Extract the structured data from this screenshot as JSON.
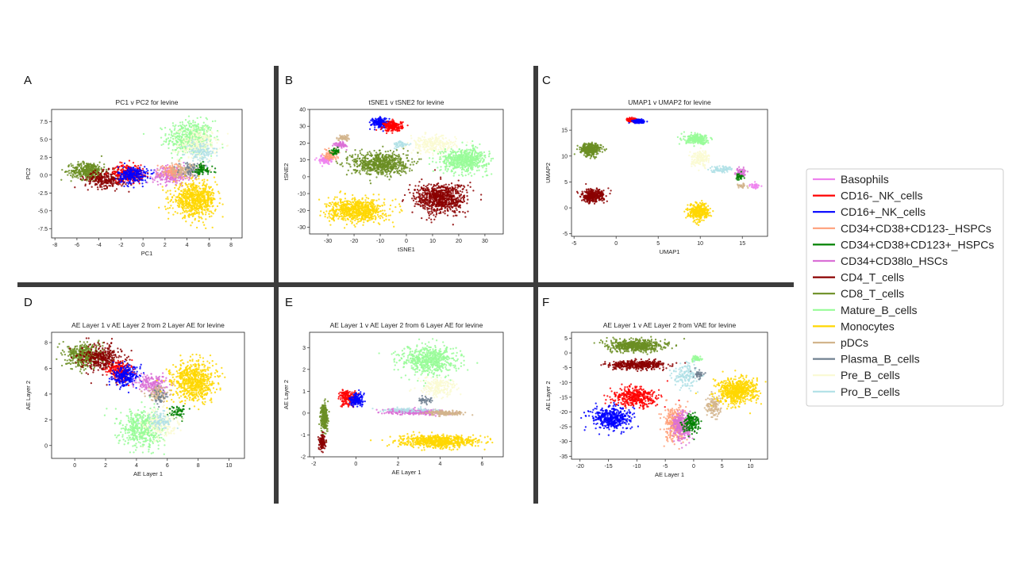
{
  "panel_letters": [
    "A",
    "B",
    "C",
    "D",
    "E",
    "F"
  ],
  "legend": {
    "items": [
      {
        "label": "Basophils",
        "color": "#ee82ee"
      },
      {
        "label": "CD16-_NK_cells",
        "color": "#ff0000"
      },
      {
        "label": "CD16+_NK_cells",
        "color": "#0000ff"
      },
      {
        "label": "CD34+CD38+CD123-_HSPCs",
        "color": "#ffa07a"
      },
      {
        "label": "CD34+CD38+CD123+_HSPCs",
        "color": "#008000"
      },
      {
        "label": "CD34+CD38lo_HSCs",
        "color": "#da70d6"
      },
      {
        "label": "CD4_T_cells",
        "color": "#8b0000"
      },
      {
        "label": "CD8_T_cells",
        "color": "#6b8e23"
      },
      {
        "label": "Mature_B_cells",
        "color": "#98fb98"
      },
      {
        "label": "Monocytes",
        "color": "#ffd700"
      },
      {
        "label": "pDCs",
        "color": "#d2b48c"
      },
      {
        "label": "Plasma_B_cells",
        "color": "#708090"
      },
      {
        "label": "Pre_B_cells",
        "color": "#fafad2"
      },
      {
        "label": "Pro_B_cells",
        "color": "#b0e0e6"
      }
    ]
  },
  "chart_data": [
    {
      "type": "scatter",
      "panel": "A",
      "title": "PC1 v PC2 for levine",
      "xlabel": "PC1",
      "ylabel": "PC2",
      "xlim": [
        -8.3,
        9
      ],
      "ylim": [
        -8.8,
        9.2
      ],
      "xticks": [
        -8,
        -6,
        -4,
        -2,
        0,
        2,
        4,
        6,
        8
      ],
      "yticks": [
        -7.5,
        -5.0,
        -2.5,
        0.0,
        2.5,
        5.0,
        7.5
      ],
      "yfmt": 1,
      "clusters": [
        {
          "c": "Mature_B_cells",
          "x": 4.3,
          "y": 5.2,
          "sx": 1.4,
          "sy": 1.6,
          "n": 500
        },
        {
          "c": "Pre_B_cells",
          "x": 5.0,
          "y": 4.3,
          "sx": 1.2,
          "sy": 1.5,
          "n": 250
        },
        {
          "c": "Pro_B_cells",
          "x": 5.2,
          "y": 3.2,
          "sx": 0.9,
          "sy": 1.0,
          "n": 120
        },
        {
          "c": "CD8_T_cells",
          "x": -5.0,
          "y": 0.6,
          "sx": 1.0,
          "sy": 0.8,
          "n": 400
        },
        {
          "c": "CD4_T_cells",
          "x": -3.3,
          "y": -0.6,
          "sx": 1.3,
          "sy": 0.8,
          "n": 300
        },
        {
          "c": "CD16-_NK_cells",
          "x": -1.3,
          "y": 0.3,
          "sx": 0.9,
          "sy": 0.8,
          "n": 260
        },
        {
          "c": "CD16+_NK_cells",
          "x": -0.9,
          "y": 0.0,
          "sx": 0.9,
          "sy": 0.8,
          "n": 260
        },
        {
          "c": "CD34+CD38lo_HSCs",
          "x": 2.6,
          "y": 0.0,
          "sx": 1.1,
          "sy": 0.8,
          "n": 250
        },
        {
          "c": "CD34+CD38+CD123-_HSPCs",
          "x": 2.8,
          "y": 0.5,
          "sx": 0.9,
          "sy": 0.7,
          "n": 120
        },
        {
          "c": "pDCs",
          "x": 3.8,
          "y": 0.6,
          "sx": 1.0,
          "sy": 0.6,
          "n": 120
        },
        {
          "c": "Plasma_B_cells",
          "x": 4.5,
          "y": 0.8,
          "sx": 0.8,
          "sy": 0.6,
          "n": 60
        },
        {
          "c": "CD34+CD38+CD123+_HSPCs",
          "x": 5.3,
          "y": 0.7,
          "sx": 0.7,
          "sy": 0.6,
          "n": 70
        },
        {
          "c": "Monocytes",
          "x": 4.7,
          "y": -3.5,
          "sx": 1.3,
          "sy": 1.5,
          "n": 700
        }
      ]
    },
    {
      "type": "scatter",
      "panel": "B",
      "title": "tSNE1 v tSNE2 for levine",
      "xlabel": "tSNE1",
      "ylabel": "tSNE2",
      "xlim": [
        -37,
        37
      ],
      "ylim": [
        -34,
        40
      ],
      "xticks": [
        -30,
        -20,
        -10,
        0,
        10,
        20,
        30
      ],
      "yticks": [
        -30,
        -20,
        -10,
        0,
        10,
        20,
        30,
        40
      ],
      "yfmt": 0,
      "clusters": [
        {
          "c": "CD16+_NK_cells",
          "x": -10,
          "y": 32,
          "sx": 2.2,
          "sy": 2.0,
          "n": 200
        },
        {
          "c": "CD16-_NK_cells",
          "x": -5,
          "y": 30,
          "sx": 2.4,
          "sy": 2.0,
          "n": 200
        },
        {
          "c": "Pre_B_cells",
          "x": 10,
          "y": 19,
          "sx": 6,
          "sy": 3.5,
          "n": 260
        },
        {
          "c": "Pro_B_cells",
          "x": -2,
          "y": 19,
          "sx": 2,
          "sy": 1.5,
          "n": 50
        },
        {
          "c": "Mature_B_cells",
          "x": 22,
          "y": 10,
          "sx": 6,
          "sy": 4.5,
          "n": 600
        },
        {
          "c": "CD8_T_cells",
          "x": -10,
          "y": 8,
          "sx": 7,
          "sy": 4.5,
          "n": 700
        },
        {
          "c": "CD4_T_cells",
          "x": 13,
          "y": -13,
          "sx": 6.5,
          "sy": 6,
          "n": 800
        },
        {
          "c": "Monocytes",
          "x": -19,
          "y": -20,
          "sx": 7,
          "sy": 4.5,
          "n": 750
        },
        {
          "c": "Basophils",
          "x": -31,
          "y": 10,
          "sx": 1.6,
          "sy": 1.5,
          "n": 90
        },
        {
          "c": "CD34+CD38+CD123-_HSPCs",
          "x": -29,
          "y": 13,
          "sx": 1.8,
          "sy": 2,
          "n": 80
        },
        {
          "c": "CD34+CD38lo_HSCs",
          "x": -25,
          "y": 19,
          "sx": 1.5,
          "sy": 1.3,
          "n": 70
        },
        {
          "c": "pDCs",
          "x": -24,
          "y": 23,
          "sx": 1.5,
          "sy": 1,
          "n": 60
        },
        {
          "c": "CD34+CD38+CD123+_HSPCs",
          "x": -27,
          "y": 15,
          "sx": 1.2,
          "sy": 1.2,
          "n": 40
        }
      ]
    },
    {
      "type": "scatter",
      "panel": "C",
      "title": "UMAP1 v UMAP2 for levine",
      "xlabel": "UMAP1",
      "ylabel": "UMAP2",
      "xlim": [
        -5.3,
        18
      ],
      "ylim": [
        -5.5,
        19
      ],
      "xticks": [
        -5,
        0,
        5,
        10,
        15
      ],
      "yticks": [
        -5,
        0,
        5,
        10,
        15
      ],
      "yfmt": 0,
      "clusters": [
        {
          "c": "CD16-_NK_cells",
          "x": 1.8,
          "y": 17.0,
          "sx": 0.4,
          "sy": 0.25,
          "n": 120
        },
        {
          "c": "CD16+_NK_cells",
          "x": 2.7,
          "y": 16.7,
          "sx": 0.5,
          "sy": 0.25,
          "n": 120
        },
        {
          "c": "CD8_T_cells",
          "x": -3.0,
          "y": 11.3,
          "sx": 0.8,
          "sy": 0.8,
          "n": 350
        },
        {
          "c": "CD4_T_cells",
          "x": -2.8,
          "y": 2.3,
          "sx": 0.9,
          "sy": 0.8,
          "n": 350
        },
        {
          "c": "Mature_B_cells",
          "x": 9.7,
          "y": 13.2,
          "sx": 1.0,
          "sy": 0.6,
          "n": 250
        },
        {
          "c": "Pre_B_cells",
          "x": 10.0,
          "y": 9.5,
          "sx": 0.7,
          "sy": 1.0,
          "n": 150
        },
        {
          "c": "Pro_B_cells",
          "x": 12.5,
          "y": 7.5,
          "sx": 1.0,
          "sy": 0.4,
          "n": 80
        },
        {
          "c": "Basophils",
          "x": 16.5,
          "y": 4.3,
          "sx": 0.4,
          "sy": 0.3,
          "n": 40
        },
        {
          "c": "CD34+CD38lo_HSCs",
          "x": 14.8,
          "y": 6.8,
          "sx": 0.4,
          "sy": 0.6,
          "n": 60
        },
        {
          "c": "CD34+CD38+CD123+_HSPCs",
          "x": 14.7,
          "y": 6.0,
          "sx": 0.3,
          "sy": 0.4,
          "n": 30
        },
        {
          "c": "pDCs",
          "x": 15.0,
          "y": 4.2,
          "sx": 0.4,
          "sy": 0.3,
          "n": 30
        },
        {
          "c": "Monocytes",
          "x": 9.8,
          "y": -0.8,
          "sx": 0.8,
          "sy": 1.1,
          "n": 350
        }
      ]
    },
    {
      "type": "scatter",
      "panel": "D",
      "title": "AE Layer 1 v AE Layer 2 from 2 Layer AE for levine",
      "xlabel": "AE Layer 1",
      "ylabel": "AE Layer 2",
      "xlim": [
        -1.5,
        11
      ],
      "ylim": [
        -1,
        8.8
      ],
      "xticks": [
        0,
        2,
        4,
        6,
        8,
        10
      ],
      "yticks": [
        0,
        2,
        4,
        6,
        8
      ],
      "yfmt": 0,
      "clusters": [
        {
          "c": "CD8_T_cells",
          "x": 0.7,
          "y": 7.0,
          "sx": 0.8,
          "sy": 0.6,
          "n": 450
        },
        {
          "c": "CD4_T_cells",
          "x": 1.8,
          "y": 6.8,
          "sx": 0.9,
          "sy": 0.7,
          "n": 350
        },
        {
          "c": "CD16-_NK_cells",
          "x": 2.9,
          "y": 5.8,
          "sx": 0.5,
          "sy": 0.5,
          "n": 200
        },
        {
          "c": "CD16+_NK_cells",
          "x": 3.3,
          "y": 5.4,
          "sx": 0.55,
          "sy": 0.5,
          "n": 250
        },
        {
          "c": "CD34+CD38lo_HSCs",
          "x": 5.0,
          "y": 4.8,
          "sx": 0.7,
          "sy": 0.5,
          "n": 200
        },
        {
          "c": "pDCs",
          "x": 5.4,
          "y": 4.0,
          "sx": 0.5,
          "sy": 0.4,
          "n": 100
        },
        {
          "c": "Plasma_B_cells",
          "x": 5.6,
          "y": 3.8,
          "sx": 0.4,
          "sy": 0.4,
          "n": 40
        },
        {
          "c": "CD34+CD38+CD123+_HSPCs",
          "x": 6.6,
          "y": 2.6,
          "sx": 0.4,
          "sy": 0.3,
          "n": 60
        },
        {
          "c": "Monocytes",
          "x": 7.7,
          "y": 5.0,
          "sx": 0.9,
          "sy": 1.0,
          "n": 700
        },
        {
          "c": "Mature_B_cells",
          "x": 4.4,
          "y": 1.3,
          "sx": 0.9,
          "sy": 1.0,
          "n": 500
        },
        {
          "c": "Pre_B_cells",
          "x": 5.5,
          "y": 1.6,
          "sx": 0.8,
          "sy": 0.8,
          "n": 200
        },
        {
          "c": "Pro_B_cells",
          "x": 5.5,
          "y": 1.9,
          "sx": 0.5,
          "sy": 0.5,
          "n": 90
        }
      ]
    },
    {
      "type": "scatter",
      "panel": "E",
      "title": "AE Layer 1 v AE Layer 2 from 6 Layer AE for levine",
      "xlabel": "AE Layer 1",
      "ylabel": "AE Layer 2",
      "xlim": [
        -2.2,
        7
      ],
      "ylim": [
        -2,
        3.7
      ],
      "xticks": [
        -2,
        0,
        2,
        4,
        6
      ],
      "yticks": [
        -2,
        -1,
        0,
        1,
        2,
        3
      ],
      "yfmt": 0,
      "clusters": [
        {
          "c": "Mature_B_cells",
          "x": 3.5,
          "y": 2.4,
          "sx": 0.9,
          "sy": 0.45,
          "n": 600
        },
        {
          "c": "Pre_B_cells",
          "x": 3.9,
          "y": 1.2,
          "sx": 0.6,
          "sy": 0.3,
          "n": 200
        },
        {
          "c": "Plasma_B_cells",
          "x": 3.3,
          "y": 0.6,
          "sx": 0.3,
          "sy": 0.1,
          "n": 40
        },
        {
          "c": "CD34+CD38lo_HSCs",
          "x": 2.8,
          "y": 0.05,
          "sx": 1.0,
          "sy": 0.08,
          "n": 300
        },
        {
          "c": "pDCs",
          "x": 4.3,
          "y": 0.0,
          "sx": 0.6,
          "sy": 0.08,
          "n": 150
        },
        {
          "c": "Pro_B_cells",
          "x": 2.5,
          "y": 0.15,
          "sx": 0.8,
          "sy": 0.06,
          "n": 80
        },
        {
          "c": "Monocytes",
          "x": 3.9,
          "y": -1.3,
          "sx": 1.2,
          "sy": 0.18,
          "n": 700
        },
        {
          "c": "CD8_T_cells",
          "x": -1.5,
          "y": -0.2,
          "sx": 0.12,
          "sy": 0.4,
          "n": 250
        },
        {
          "c": "CD4_T_cells",
          "x": -1.6,
          "y": -1.3,
          "sx": 0.1,
          "sy": 0.25,
          "n": 120
        },
        {
          "c": "CD16-_NK_cells",
          "x": -0.4,
          "y": 0.7,
          "sx": 0.3,
          "sy": 0.25,
          "n": 160
        },
        {
          "c": "CD16+_NK_cells",
          "x": 0.05,
          "y": 0.6,
          "sx": 0.22,
          "sy": 0.2,
          "n": 160
        }
      ]
    },
    {
      "type": "scatter",
      "panel": "F",
      "title": "AE Layer 1 v AE Layer 2 from VAE for levine",
      "xlabel": "AE Layer 1",
      "ylabel": "AE Layer 2",
      "xlim": [
        -21.5,
        13
      ],
      "ylim": [
        -36,
        7
      ],
      "xticks": [
        -20,
        -15,
        -10,
        -5,
        0,
        5,
        10
      ],
      "yticks": [
        -35,
        -30,
        -25,
        -20,
        -15,
        -10,
        -5,
        0,
        5
      ],
      "yfmt": 0,
      "clusters": [
        {
          "c": "CD8_T_cells",
          "x": -10,
          "y": 2.5,
          "sx": 3.3,
          "sy": 1.3,
          "n": 600
        },
        {
          "c": "CD4_T_cells",
          "x": -10,
          "y": -4,
          "sx": 3.3,
          "sy": 1.0,
          "n": 450
        },
        {
          "c": "CD16-_NK_cells",
          "x": -10.5,
          "y": -15,
          "sx": 2.5,
          "sy": 2.3,
          "n": 400
        },
        {
          "c": "CD16+_NK_cells",
          "x": -14.5,
          "y": -22,
          "sx": 2.3,
          "sy": 2.5,
          "n": 450
        },
        {
          "c": "Pro_B_cells",
          "x": -1.5,
          "y": -8,
          "sx": 1.5,
          "sy": 3,
          "n": 150
        },
        {
          "c": "Mature_B_cells",
          "x": 0.5,
          "y": -2,
          "sx": 0.6,
          "sy": 0.6,
          "n": 50
        },
        {
          "c": "Plasma_B_cells",
          "x": 0.8,
          "y": -7,
          "sx": 0.6,
          "sy": 1.2,
          "n": 40
        },
        {
          "c": "CD34+CD38+CD123-_HSPCs",
          "x": -3.3,
          "y": -24,
          "sx": 1.2,
          "sy": 4,
          "n": 300
        },
        {
          "c": "CD34+CD38lo_HSCs",
          "x": -2.0,
          "y": -25,
          "sx": 1.2,
          "sy": 3.5,
          "n": 250
        },
        {
          "c": "CD34+CD38+CD123+_HSPCs",
          "x": -0.5,
          "y": -24,
          "sx": 1.0,
          "sy": 2.0,
          "n": 150
        },
        {
          "c": "pDCs",
          "x": 3.5,
          "y": -18,
          "sx": 0.8,
          "sy": 2.5,
          "n": 120
        },
        {
          "c": "Monocytes",
          "x": 7.5,
          "y": -13,
          "sx": 2.3,
          "sy": 3,
          "n": 650
        }
      ]
    }
  ]
}
